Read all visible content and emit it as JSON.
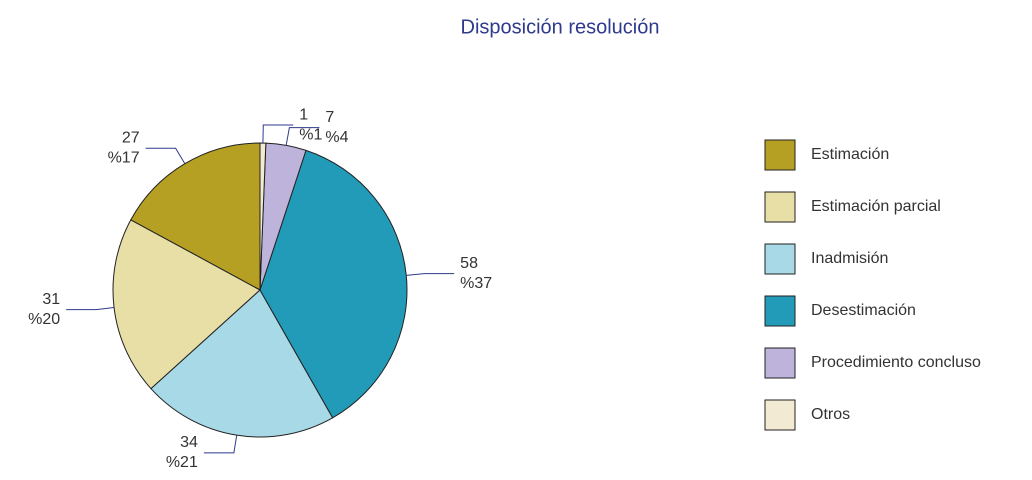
{
  "chart_data": {
    "type": "pie",
    "title": "Disposición resolución",
    "categories": [
      "Estimación",
      "Estimación parcial",
      "Inadmisión",
      "Desestimación",
      "Procedimiento concluso",
      "Otros"
    ],
    "values": [
      27,
      31,
      34,
      58,
      7,
      1
    ],
    "percent_labels": [
      "%17",
      "%20",
      "%21",
      "%37",
      "%4",
      "%1"
    ],
    "colors": [
      "#b5a024",
      "#e8dfa6",
      "#a8d9e6",
      "#229bb8",
      "#bdb3db",
      "#f2ead2"
    ],
    "legend": "right"
  }
}
